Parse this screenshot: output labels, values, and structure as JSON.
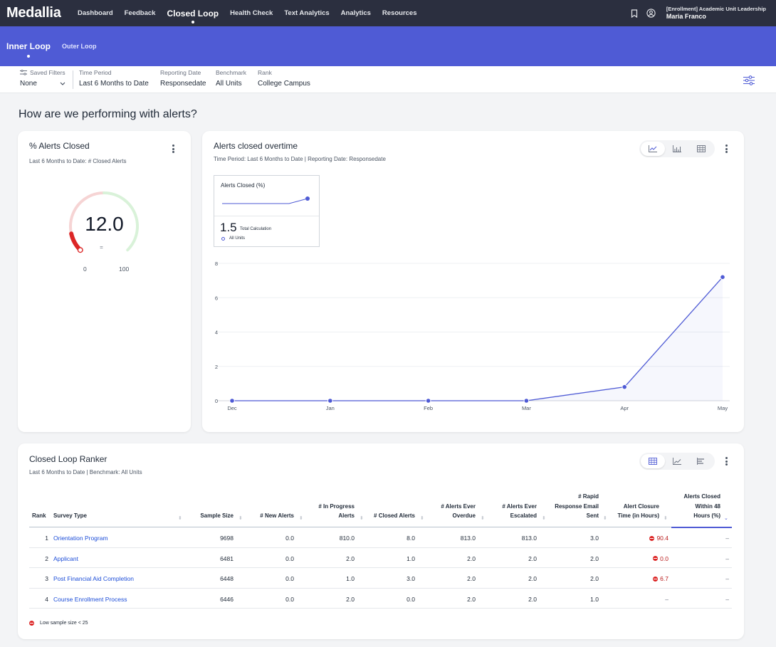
{
  "nav": {
    "brand": "Medallia",
    "items": [
      {
        "label": "Dashboard",
        "active": false
      },
      {
        "label": "Feedback",
        "active": false
      },
      {
        "label": "Closed Loop",
        "active": true
      },
      {
        "label": "Health Check",
        "active": false
      },
      {
        "label": "Text Analytics",
        "active": false
      },
      {
        "label": "Analytics",
        "active": false
      },
      {
        "label": "Resources",
        "active": false
      }
    ],
    "user_role": "[Enrollment] Academic Unit Leadership",
    "user_name": "Maria Franco"
  },
  "subnav": {
    "items": [
      {
        "label": "Inner Loop",
        "active": true
      },
      {
        "label": "Outer Loop",
        "active": false
      }
    ]
  },
  "filters": {
    "saved_filters_label": "Saved Filters",
    "saved_filters_value": "None",
    "time_period_label": "Time Period",
    "time_period_value": "Last 6 Months to Date",
    "reporting_date_label": "Reporting Date",
    "reporting_date_value": "Responsedate",
    "benchmark_label": "Benchmark",
    "benchmark_value": "All Units",
    "rank_label": "Rank",
    "rank_value": "College Campus"
  },
  "page_heading": "How are we performing with alerts?",
  "alerts_closed_card": {
    "title": "% Alerts Closed",
    "subtitle": "Last 6 Months to Date: # Closed Alerts",
    "value": "12.0",
    "value_num": 12.0,
    "delta": "=",
    "min": "0",
    "max": "100",
    "min_num": 0,
    "max_num": 100
  },
  "overtime_card": {
    "title": "Alerts closed overtime",
    "subtitle": "Time Period: Last 6 Months to Date | Reporting Date: Responsedate",
    "mini_title": "Alerts Closed (%)",
    "mini_value": "1.5",
    "mini_calc": "Total Calculation",
    "mini_unit": "All Units"
  },
  "chart_data": {
    "type": "line",
    "categories": [
      "Dec",
      "Jan",
      "Feb",
      "Mar",
      "Apr",
      "May"
    ],
    "series": [
      {
        "values": [
          0,
          0,
          0,
          0,
          0.8,
          7.2
        ]
      }
    ],
    "ylim": [
      0,
      8
    ],
    "yticks": [
      "0",
      "2",
      "4",
      "6",
      "8"
    ],
    "grid": true,
    "line_color": "#4f5bd5"
  },
  "ranker": {
    "title": "Closed Loop Ranker",
    "subtitle": "Last 6 Months to Date | Benchmark: All Units",
    "headers": {
      "rank": "Rank",
      "survey_type": "Survey Type",
      "sample_size": "Sample Size",
      "new_alerts": "# New Alerts",
      "in_progress_1": "# In Progress",
      "in_progress_2": "Alerts",
      "closed_alerts": "# Closed Alerts",
      "overdue_1": "# Alerts Ever",
      "overdue_2": "Overdue",
      "escalated_1": "# Alerts Ever",
      "escalated_2": "Escalated",
      "rapid_1": "# Rapid",
      "rapid_2": "Response Email",
      "rapid_3": "Sent",
      "closure_1": "Alert Closure",
      "closure_2": "Time (in Hours)",
      "within48_1": "Alerts Closed",
      "within48_2": "Within 48",
      "within48_3": "Hours (%)"
    },
    "rows": [
      {
        "rank": "1",
        "survey_type": "Orientation Program",
        "sample_size": "9698",
        "new_alerts": "0.0",
        "in_progress": "810.0",
        "closed": "8.0",
        "overdue": "813.0",
        "escalated": "813.0",
        "rapid": "3.0",
        "closure": "90.4",
        "closure_warn": true,
        "within48": "–"
      },
      {
        "rank": "2",
        "survey_type": "Applicant",
        "sample_size": "6481",
        "new_alerts": "0.0",
        "in_progress": "2.0",
        "closed": "1.0",
        "overdue": "2.0",
        "escalated": "2.0",
        "rapid": "2.0",
        "closure": "0.0",
        "closure_warn": true,
        "within48": "–"
      },
      {
        "rank": "3",
        "survey_type": "Post Financial Aid Completion",
        "sample_size": "6448",
        "new_alerts": "0.0",
        "in_progress": "1.0",
        "closed": "3.0",
        "overdue": "2.0",
        "escalated": "2.0",
        "rapid": "2.0",
        "closure": "6.7",
        "closure_warn": true,
        "within48": "–"
      },
      {
        "rank": "4",
        "survey_type": "Course Enrollment Process",
        "sample_size": "6446",
        "new_alerts": "0.0",
        "in_progress": "2.0",
        "closed": "0.0",
        "overdue": "2.0",
        "escalated": "2.0",
        "rapid": "1.0",
        "closure": "–",
        "closure_warn": false,
        "within48": "–"
      }
    ],
    "legend_note": "Low sample size < 25"
  }
}
